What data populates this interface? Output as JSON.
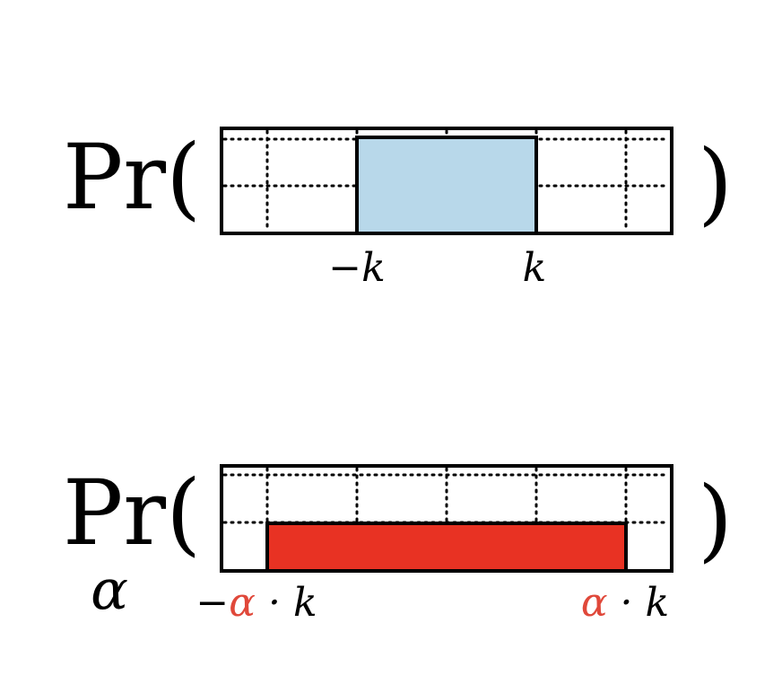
{
  "colors": {
    "stroke": "#000000",
    "blue_fill": "#b8d8ea",
    "red_fill": "#e83223",
    "alpha_red": "#e0483a"
  },
  "top": {
    "prefix": "Pr(",
    "close": ")",
    "label_left": "−k",
    "label_right": "k"
  },
  "bottom": {
    "prefix": "Pr(",
    "subscript": "α",
    "close": ")",
    "label_left_sign": "−",
    "label_left_alpha": "α",
    "label_left_rest": " · k",
    "label_right_alpha": "α",
    "label_right_rest": " · k"
  }
}
